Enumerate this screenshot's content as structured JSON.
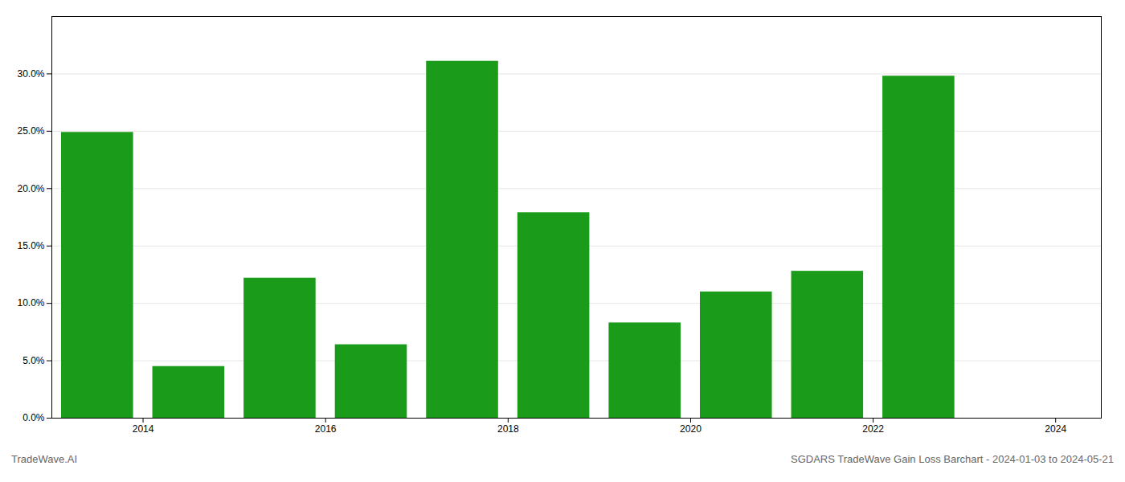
{
  "chart_data": {
    "type": "bar",
    "x": [
      2013.5,
      2014.5,
      2015.5,
      2016.5,
      2017.5,
      2018.5,
      2019.5,
      2020.5,
      2021.5,
      2022.5
    ],
    "values": [
      0.249,
      0.045,
      0.122,
      0.064,
      0.311,
      0.179,
      0.083,
      0.11,
      0.128,
      0.298
    ],
    "color": "#1a9c1a",
    "xlim": [
      2013.0,
      2024.5
    ],
    "xticks": [
      2014,
      2016,
      2018,
      2020,
      2022,
      2024
    ],
    "ylim": [
      0,
      0.35
    ],
    "yticks": [
      {
        "value": 0.0,
        "label": "0.0%"
      },
      {
        "value": 0.05,
        "label": "5.0%"
      },
      {
        "value": 0.1,
        "label": "10.0%"
      },
      {
        "value": 0.15,
        "label": "15.0%"
      },
      {
        "value": 0.2,
        "label": "20.0%"
      },
      {
        "value": 0.25,
        "label": "25.0%"
      },
      {
        "value": 0.3,
        "label": "30.0%"
      }
    ],
    "grid": true,
    "annotations": [
      "TradeWave.AI",
      "SGDARS TradeWave Gain Loss Barchart - 2024-01-03 to 2024-05-21"
    ]
  }
}
